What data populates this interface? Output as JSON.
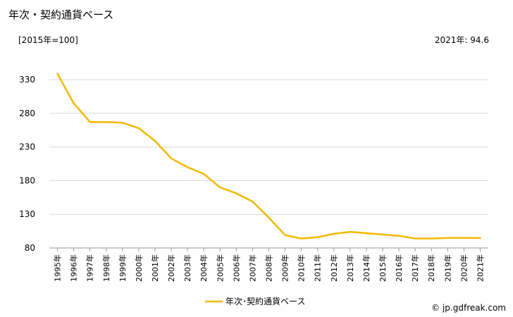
{
  "chart_data": {
    "type": "line",
    "title": "年次・契約通貨ベース",
    "unit_label": "[2015年=100]",
    "latest_label": "2021年: 94.6",
    "credit": "© jp.gdfreak.com",
    "xlabel": "",
    "ylabel": "",
    "ylim": [
      80,
      350
    ],
    "yticks": [
      80,
      130,
      180,
      230,
      280,
      330
    ],
    "grid": true,
    "legend_position": "bottom",
    "categories": [
      "1995年",
      "1996年",
      "1997年",
      "1998年",
      "1999年",
      "2000年",
      "2001年",
      "2002年",
      "2003年",
      "2004年",
      "2005年",
      "2006年",
      "2007年",
      "2008年",
      "2009年",
      "2010年",
      "2011年",
      "2012年",
      "2013年",
      "2014年",
      "2015年",
      "2016年",
      "2017年",
      "2018年",
      "2019年",
      "2020年",
      "2021年"
    ],
    "series": [
      {
        "name": "年次･契約通貨ベース",
        "color": "#f5b800",
        "values": [
          339,
          295,
          267,
          267,
          266,
          258,
          239,
          213,
          200,
          190,
          170,
          161,
          149,
          125,
          99,
          94,
          96,
          101,
          104,
          102,
          100,
          98,
          94,
          94,
          95,
          95,
          94.6
        ]
      }
    ]
  }
}
